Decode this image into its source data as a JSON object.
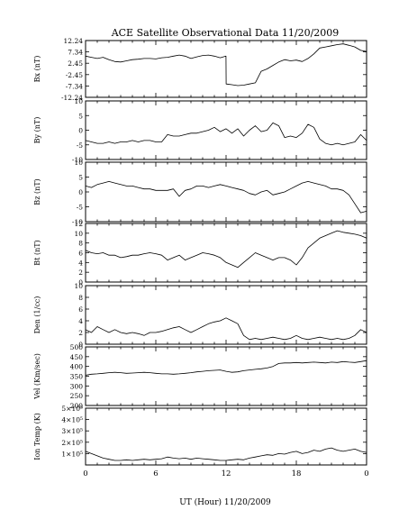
{
  "chart_data": {
    "type": "line",
    "title": "ACE Satellite Observational Data   11/20/2009",
    "xlabel": "UT (Hour)   11/20/2009",
    "x_ticks": [
      "0",
      "6",
      "12",
      "18",
      "0"
    ],
    "xlim": [
      0,
      24
    ],
    "panels": [
      {
        "ylabel": "Bx (nT)",
        "ylim": [
          -12.24,
          12.24
        ],
        "y_ticks": [
          {
            "value": 12.24,
            "label": "12.24"
          },
          {
            "value": 7.34,
            "label": "7.34"
          },
          {
            "value": 2.45,
            "label": "2.45"
          },
          {
            "value": -2.45,
            "label": "-2.45"
          },
          {
            "value": -7.34,
            "label": "-7.34"
          },
          {
            "value": -12.24,
            "label": "-12.24"
          }
        ],
        "series": {
          "x": [
            0,
            0.5,
            1,
            1.5,
            2,
            2.5,
            3,
            3.5,
            4,
            4.5,
            5,
            5.5,
            6,
            6.5,
            7,
            7.5,
            8,
            8.5,
            9,
            9.5,
            10,
            10.5,
            11,
            11.5,
            11.99,
            12.01,
            12.5,
            13,
            13.5,
            14,
            14.5,
            15,
            15.5,
            16,
            16.5,
            17,
            17.5,
            18,
            18.5,
            19,
            19.5,
            20,
            20.5,
            21,
            21.5,
            22,
            22.5,
            23,
            23.5,
            24
          ],
          "y": [
            5.5,
            5,
            4.5,
            5,
            4,
            3.2,
            3,
            3.5,
            4,
            4.2,
            4.5,
            4.5,
            4.3,
            4.8,
            5,
            5.5,
            6,
            5.5,
            4.5,
            5.2,
            5.8,
            6,
            5.5,
            4.8,
            5.5,
            -6.5,
            -6.8,
            -7.2,
            -7,
            -6.5,
            -6,
            -1,
            0,
            1.5,
            3,
            4,
            3.5,
            3.8,
            3.2,
            4.5,
            6.5,
            9,
            9.5,
            10,
            10.5,
            10.8,
            10.2,
            9.5,
            8,
            7.5
          ]
        }
      },
      {
        "ylabel": "By (nT)",
        "ylim": [
          -10,
          10
        ],
        "y_ticks": [
          {
            "value": 10,
            "label": "10"
          },
          {
            "value": 5,
            "label": "5"
          },
          {
            "value": 0,
            "label": "0"
          },
          {
            "value": -5,
            "label": "-5"
          },
          {
            "value": -10,
            "label": "-10"
          }
        ],
        "series": {
          "x": [
            0,
            0.5,
            1,
            1.5,
            2,
            2.5,
            3,
            3.5,
            4,
            4.5,
            5,
            5.5,
            6,
            6.5,
            7,
            7.5,
            8,
            8.5,
            9,
            9.5,
            10,
            10.5,
            11,
            11.5,
            12,
            12.5,
            13,
            13.5,
            14,
            14.5,
            15,
            15.5,
            16,
            16.5,
            17,
            17.5,
            18,
            18.5,
            19,
            19.5,
            20,
            20.5,
            21,
            21.5,
            22,
            22.5,
            23,
            23.5,
            24
          ],
          "y": [
            -3.5,
            -4,
            -4.5,
            -4.5,
            -4,
            -4.5,
            -4,
            -4,
            -3.5,
            -4,
            -3.5,
            -3.5,
            -4,
            -4,
            -1.5,
            -2,
            -2,
            -1.5,
            -1,
            -1,
            -0.5,
            0,
            1,
            -0.5,
            0.5,
            -1,
            0.5,
            -2,
            0,
            1.5,
            -0.5,
            0,
            2.5,
            1.5,
            -2.5,
            -2,
            -2.5,
            -1,
            2,
            1,
            -3,
            -4.5,
            -5,
            -4.5,
            -5,
            -4.5,
            -4,
            -1.5,
            -3.5
          ]
        }
      },
      {
        "ylabel": "Bz (nT)",
        "ylim": [
          -10,
          10
        ],
        "y_ticks": [
          {
            "value": 10,
            "label": "10"
          },
          {
            "value": 5,
            "label": "5"
          },
          {
            "value": 0,
            "label": "0"
          },
          {
            "value": -5,
            "label": "-5"
          },
          {
            "value": -10,
            "label": "-10"
          }
        ],
        "series": {
          "x": [
            0,
            0.5,
            1,
            1.5,
            2,
            2.5,
            3,
            3.5,
            4,
            4.5,
            5,
            5.5,
            6,
            6.5,
            7,
            7.5,
            8,
            8.5,
            9,
            9.5,
            10,
            10.5,
            11,
            11.5,
            12,
            12.5,
            13,
            13.5,
            14,
            14.5,
            15,
            15.5,
            16,
            16.5,
            17,
            17.5,
            18,
            18.5,
            19,
            19.5,
            20,
            20.5,
            21,
            21.5,
            22,
            22.5,
            23,
            23.5,
            24
          ],
          "y": [
            2,
            1.5,
            2.5,
            3,
            3.5,
            3,
            2.5,
            2,
            2,
            1.5,
            1,
            1,
            0.5,
            0.5,
            0.5,
            1,
            -1.5,
            0.5,
            1,
            2,
            2,
            1.5,
            2,
            2.5,
            2,
            1.5,
            1,
            0.5,
            -0.5,
            -1,
            0,
            0.5,
            -1,
            -0.5,
            0,
            1,
            2,
            3,
            3.5,
            3,
            2.5,
            2,
            1,
            1,
            0.5,
            -1,
            -4,
            -7,
            -6.5
          ]
        }
      },
      {
        "ylabel": "Bt (nT)",
        "ylim": [
          0,
          12
        ],
        "y_ticks": [
          {
            "value": 12,
            "label": "12"
          },
          {
            "value": 10,
            "label": "10"
          },
          {
            "value": 8,
            "label": "8"
          },
          {
            "value": 6,
            "label": "6"
          },
          {
            "value": 4,
            "label": "4"
          },
          {
            "value": 2,
            "label": "2"
          },
          {
            "value": 0,
            "label": "0"
          }
        ],
        "series": {
          "x": [
            0,
            0.5,
            1,
            1.5,
            2,
            2.5,
            3,
            3.5,
            4,
            4.5,
            5,
            5.5,
            6,
            6.5,
            7,
            7.5,
            8,
            8.5,
            9,
            9.5,
            10,
            10.5,
            11,
            11.5,
            12,
            12.5,
            13,
            13.5,
            14,
            14.5,
            15,
            15.5,
            16,
            16.5,
            17,
            17.5,
            18,
            18.5,
            19,
            19.5,
            20,
            20.5,
            21,
            21.5,
            22,
            22.5,
            23,
            23.5,
            24
          ],
          "y": [
            6.5,
            6,
            5.8,
            6,
            5.5,
            5.5,
            5,
            5.2,
            5.5,
            5.5,
            5.8,
            6,
            5.8,
            5.5,
            4.5,
            5,
            5.5,
            4.5,
            5,
            5.5,
            6,
            5.8,
            5.5,
            5,
            4,
            3.5,
            3,
            4,
            5,
            6,
            5.5,
            5,
            4.5,
            5,
            5,
            4.5,
            3.5,
            5,
            7,
            8,
            9,
            9.5,
            10,
            10.5,
            10.2,
            10,
            9.8,
            9.5,
            9
          ]
        }
      },
      {
        "ylabel": "Den (1/cc)",
        "ylim": [
          0,
          10
        ],
        "y_ticks": [
          {
            "value": 10,
            "label": "10"
          },
          {
            "value": 8,
            "label": "8"
          },
          {
            "value": 6,
            "label": "6"
          },
          {
            "value": 4,
            "label": "4"
          },
          {
            "value": 2,
            "label": "2"
          },
          {
            "value": 0,
            "label": "0"
          }
        ],
        "series": {
          "x": [
            0,
            0.5,
            1,
            1.5,
            2,
            2.5,
            3,
            3.5,
            4,
            4.5,
            5,
            5.5,
            6,
            6.5,
            7,
            7.5,
            8,
            8.5,
            9,
            9.5,
            10,
            10.5,
            11,
            11.5,
            12,
            12.5,
            13,
            13.5,
            14,
            14.5,
            15,
            15.5,
            16,
            16.5,
            17,
            17.5,
            18,
            18.5,
            19,
            19.5,
            20,
            20.5,
            21,
            21.5,
            22,
            22.5,
            23,
            23.5,
            24
          ],
          "y": [
            2.5,
            2,
            3,
            2.5,
            2,
            2.5,
            2,
            1.8,
            2,
            1.8,
            1.5,
            2,
            2,
            2.2,
            2.5,
            2.8,
            3,
            2.5,
            2,
            2.5,
            3,
            3.5,
            3.8,
            4,
            4.5,
            4,
            3.5,
            1.5,
            0.8,
            1,
            0.8,
            1,
            1.2,
            1,
            0.8,
            1,
            1.5,
            1,
            0.8,
            1,
            1.2,
            1,
            0.8,
            1,
            0.8,
            1,
            1.5,
            2.5,
            2
          ]
        }
      },
      {
        "ylabel": "Vel (Km/sec)",
        "ylim": [
          200,
          500
        ],
        "y_ticks": [
          {
            "value": 500,
            "label": "500"
          },
          {
            "value": 450,
            "label": "450"
          },
          {
            "value": 400,
            "label": "400"
          },
          {
            "value": 350,
            "label": "350"
          },
          {
            "value": 300,
            "label": "300"
          },
          {
            "value": 250,
            "label": "250"
          },
          {
            "value": 200,
            "label": "200"
          }
        ],
        "series": {
          "x": [
            0,
            0.5,
            1,
            1.5,
            2,
            2.5,
            3,
            3.5,
            4,
            4.5,
            5,
            5.5,
            6,
            6.5,
            7,
            7.5,
            8,
            8.5,
            9,
            9.5,
            10,
            10.5,
            11,
            11.5,
            12,
            12.5,
            13,
            13.5,
            14,
            14.5,
            15,
            15.5,
            16,
            16.5,
            17,
            17.5,
            18,
            18.5,
            19,
            19.5,
            20,
            20.5,
            21,
            21.5,
            22,
            22.5,
            23,
            23.5,
            24
          ],
          "y": [
            355,
            360,
            362,
            365,
            368,
            370,
            368,
            365,
            366,
            368,
            370,
            368,
            365,
            362,
            362,
            360,
            362,
            365,
            368,
            372,
            375,
            378,
            380,
            382,
            375,
            370,
            372,
            378,
            382,
            385,
            388,
            392,
            400,
            415,
            418,
            418,
            420,
            418,
            420,
            422,
            420,
            418,
            422,
            420,
            425,
            422,
            420,
            425,
            430
          ]
        }
      },
      {
        "ylabel": "Ion Temp (K)",
        "ylim": [
          0,
          500000
        ],
        "y_ticks": [
          {
            "value": 500000,
            "label": "5×10⁵"
          },
          {
            "value": 400000,
            "label": "4×10⁵"
          },
          {
            "value": 300000,
            "label": "3×10⁵"
          },
          {
            "value": 200000,
            "label": "2×10⁵"
          },
          {
            "value": 100000,
            "label": "1×10⁵"
          }
        ],
        "series": {
          "x": [
            0,
            0.5,
            1,
            1.5,
            2,
            2.5,
            3,
            3.5,
            4,
            4.5,
            5,
            5.5,
            6,
            6.5,
            7,
            7.5,
            8,
            8.5,
            9,
            9.5,
            10,
            10.5,
            11,
            11.5,
            12,
            12.5,
            13,
            13.5,
            14,
            14.5,
            15,
            15.5,
            16,
            16.5,
            17,
            17.5,
            18,
            18.5,
            19,
            19.5,
            20,
            20.5,
            21,
            21.5,
            22,
            22.5,
            23,
            23.5,
            24
          ],
          "y": [
            120000,
            100000,
            80000,
            60000,
            50000,
            40000,
            40000,
            45000,
            40000,
            45000,
            50000,
            45000,
            50000,
            55000,
            70000,
            60000,
            55000,
            60000,
            50000,
            60000,
            55000,
            50000,
            45000,
            40000,
            40000,
            45000,
            50000,
            45000,
            60000,
            70000,
            80000,
            90000,
            85000,
            100000,
            95000,
            110000,
            120000,
            100000,
            110000,
            130000,
            120000,
            140000,
            150000,
            130000,
            120000,
            130000,
            140000,
            120000,
            110000
          ]
        }
      }
    ]
  }
}
